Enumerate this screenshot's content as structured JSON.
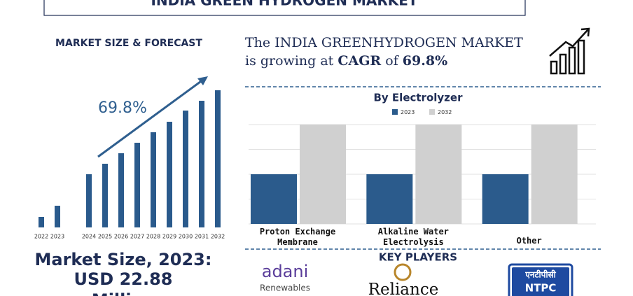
{
  "header": {
    "title": "INDIA GREEN HYDROGEN MARKET"
  },
  "chart_data": [
    {
      "type": "bar",
      "title": "MARKET SIZE & FORECAST",
      "categories": [
        "2022",
        "2023",
        "2024",
        "2025",
        "2026",
        "2027",
        "2028",
        "2029",
        "2030",
        "2031",
        "2032"
      ],
      "values": [
        15,
        31,
        76,
        91,
        106,
        121,
        136,
        151,
        167,
        181,
        196
      ],
      "color": "#2a5a8c",
      "ylim": [
        0,
        200
      ],
      "annotation": "69.8%"
    },
    {
      "type": "grouped_bar",
      "title": "By Electrolyzer",
      "categories": [
        "Proton Exchange Membrane",
        "Alkaline Water Electrolysis",
        "Other"
      ],
      "series": [
        {
          "name": "2023",
          "color": "#2b5b8c",
          "values": [
            2,
            2,
            2
          ]
        },
        {
          "name": "2032",
          "color": "#d0d0d0",
          "values": [
            4,
            4,
            4
          ]
        }
      ],
      "ylim": [
        0,
        4
      ],
      "yticks": [
        0,
        1,
        2,
        3,
        4
      ],
      "grid": true
    }
  ],
  "market_size": {
    "label": "Market Size, 2023:",
    "value": "USD 22.88",
    "unit": "Million"
  },
  "headline": {
    "line1": "The INDIA GREENHYDROGEN MARKET",
    "lead": "is growing at ",
    "cagr": "CAGR",
    "of": " of ",
    "rate": "69.8%"
  },
  "key_players": {
    "title": "KEY PLAYERS",
    "adani": {
      "name": "adani",
      "sub": "Renewables"
    },
    "reliance": {
      "name": "Reliance"
    },
    "ntpc": {
      "hindi": "एनटीपीसी",
      "name": "NTPC"
    }
  }
}
